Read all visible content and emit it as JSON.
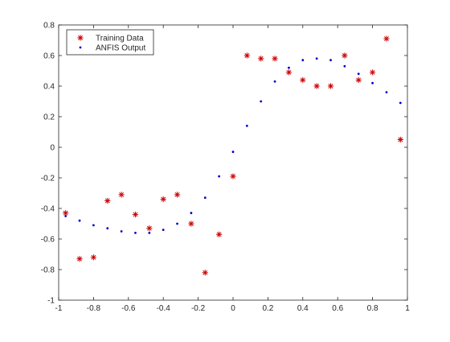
{
  "chart_data": {
    "type": "scatter",
    "title": "",
    "xlabel": "",
    "ylabel": "",
    "xlim": [
      -1,
      1
    ],
    "ylim": [
      -1,
      0.8
    ],
    "xticks": [
      "-1",
      "-0.8",
      "-0.6",
      "-0.4",
      "-0.2",
      "0",
      "0.2",
      "0.4",
      "0.6",
      "0.8",
      "1"
    ],
    "yticks": [
      "-1",
      "-0.8",
      "-0.6",
      "-0.4",
      "-0.2",
      "0",
      "0.2",
      "0.4",
      "0.6",
      "0.8"
    ],
    "grid": false,
    "legend": {
      "placement": "top-left"
    },
    "series": [
      {
        "name": "Training Data",
        "marker": "asterisk",
        "color": "#cc0000",
        "points": [
          [
            -0.96,
            -0.43
          ],
          [
            -0.88,
            -0.73
          ],
          [
            -0.8,
            -0.72
          ],
          [
            -0.72,
            -0.35
          ],
          [
            -0.64,
            -0.31
          ],
          [
            -0.56,
            -0.44
          ],
          [
            -0.48,
            -0.53
          ],
          [
            -0.4,
            -0.34
          ],
          [
            -0.32,
            -0.31
          ],
          [
            -0.24,
            -0.5
          ],
          [
            -0.16,
            -0.82
          ],
          [
            -0.08,
            -0.57
          ],
          [
            0.0,
            -0.19
          ],
          [
            0.08,
            0.6
          ],
          [
            0.16,
            0.58
          ],
          [
            0.24,
            0.58
          ],
          [
            0.32,
            0.49
          ],
          [
            0.4,
            0.44
          ],
          [
            0.48,
            0.4
          ],
          [
            0.56,
            0.4
          ],
          [
            0.64,
            0.6
          ],
          [
            0.72,
            0.44
          ],
          [
            0.8,
            0.49
          ],
          [
            0.88,
            0.71
          ],
          [
            0.96,
            0.05
          ]
        ]
      },
      {
        "name": "ANFIS Output",
        "marker": "dot",
        "color": "#0000cc",
        "points": [
          [
            -0.96,
            -0.45
          ],
          [
            -0.88,
            -0.48
          ],
          [
            -0.8,
            -0.51
          ],
          [
            -0.72,
            -0.53
          ],
          [
            -0.64,
            -0.55
          ],
          [
            -0.56,
            -0.56
          ],
          [
            -0.48,
            -0.56
          ],
          [
            -0.4,
            -0.54
          ],
          [
            -0.32,
            -0.5
          ],
          [
            -0.24,
            -0.43
          ],
          [
            -0.16,
            -0.33
          ],
          [
            -0.08,
            -0.19
          ],
          [
            0.0,
            -0.03
          ],
          [
            0.08,
            0.14
          ],
          [
            0.16,
            0.3
          ],
          [
            0.24,
            0.43
          ],
          [
            0.32,
            0.52
          ],
          [
            0.4,
            0.57
          ],
          [
            0.48,
            0.58
          ],
          [
            0.56,
            0.57
          ],
          [
            0.64,
            0.53
          ],
          [
            0.72,
            0.48
          ],
          [
            0.8,
            0.42
          ],
          [
            0.88,
            0.36
          ],
          [
            0.96,
            0.29
          ]
        ]
      }
    ]
  }
}
